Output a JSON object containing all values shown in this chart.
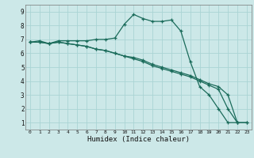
{
  "xlabel": "Humidex (Indice chaleur)",
  "bg_color": "#cce8e8",
  "grid_color": "#aad4d4",
  "line_color": "#1a6b5a",
  "xlim": [
    -0.5,
    23.5
  ],
  "ylim": [
    0.5,
    9.5
  ],
  "xticks": [
    0,
    1,
    2,
    3,
    4,
    5,
    6,
    7,
    8,
    9,
    10,
    11,
    12,
    13,
    14,
    15,
    16,
    17,
    18,
    19,
    20,
    21,
    22,
    23
  ],
  "yticks": [
    1,
    2,
    3,
    4,
    5,
    6,
    7,
    8,
    9
  ],
  "line1_x": [
    0,
    1,
    2,
    3,
    4,
    5,
    6,
    7,
    8,
    9,
    10,
    11,
    12,
    13,
    14,
    15,
    16,
    17,
    18,
    19,
    20,
    21,
    22
  ],
  "line1_y": [
    6.8,
    6.9,
    6.7,
    6.9,
    6.9,
    6.9,
    6.9,
    7.0,
    7.0,
    7.1,
    8.1,
    8.8,
    8.5,
    8.3,
    8.3,
    8.4,
    7.6,
    5.4,
    3.6,
    3.0,
    2.0,
    1.0,
    1.0
  ],
  "line2_x": [
    0,
    1,
    2,
    3,
    4,
    5,
    6,
    7,
    8,
    9,
    10,
    11,
    12,
    13,
    14,
    15,
    16,
    17,
    18,
    19,
    20,
    21,
    22,
    23
  ],
  "line2_y": [
    6.8,
    6.8,
    6.7,
    6.8,
    6.7,
    6.6,
    6.5,
    6.3,
    6.2,
    6.0,
    5.8,
    5.7,
    5.5,
    5.2,
    5.0,
    4.8,
    4.6,
    4.4,
    4.1,
    3.8,
    3.6,
    3.0,
    1.0,
    1.0
  ],
  "line3_x": [
    0,
    1,
    2,
    3,
    4,
    5,
    6,
    7,
    8,
    9,
    10,
    11,
    12,
    13,
    14,
    15,
    16,
    17,
    18,
    19,
    20,
    21,
    22,
    23
  ],
  "line3_y": [
    6.8,
    6.8,
    6.7,
    6.8,
    6.7,
    6.6,
    6.5,
    6.3,
    6.2,
    6.0,
    5.8,
    5.6,
    5.4,
    5.1,
    4.9,
    4.7,
    4.5,
    4.3,
    4.0,
    3.7,
    3.4,
    2.0,
    1.0,
    1.0
  ]
}
